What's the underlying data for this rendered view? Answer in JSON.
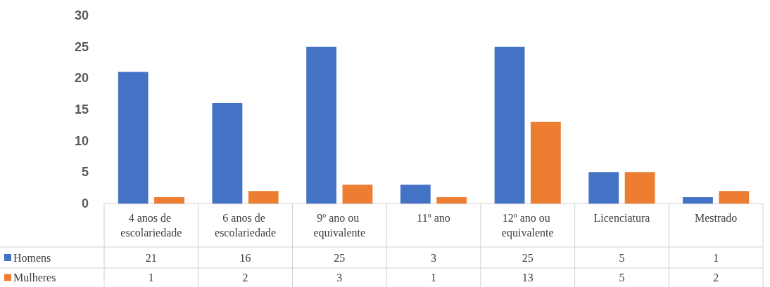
{
  "chart_data": {
    "type": "bar",
    "categories": [
      "4 anos de escolariedade",
      "6 anos de escolariedade",
      "9º ano ou equivalente",
      "11º ano",
      "12º ano ou equivalente",
      "Licenciatura",
      "Mestrado"
    ],
    "series": [
      {
        "name": "Homens",
        "color": "#4472c4",
        "values": [
          21,
          16,
          25,
          3,
          25,
          5,
          1
        ]
      },
      {
        "name": "Mulheres",
        "color": "#ed7d31",
        "values": [
          1,
          2,
          3,
          1,
          13,
          5,
          2
        ]
      }
    ],
    "ylim": [
      0,
      30
    ],
    "yticks": [
      0,
      5,
      10,
      15,
      20,
      25,
      30
    ],
    "grid": false,
    "legend": "bottom",
    "data_labels": true
  }
}
